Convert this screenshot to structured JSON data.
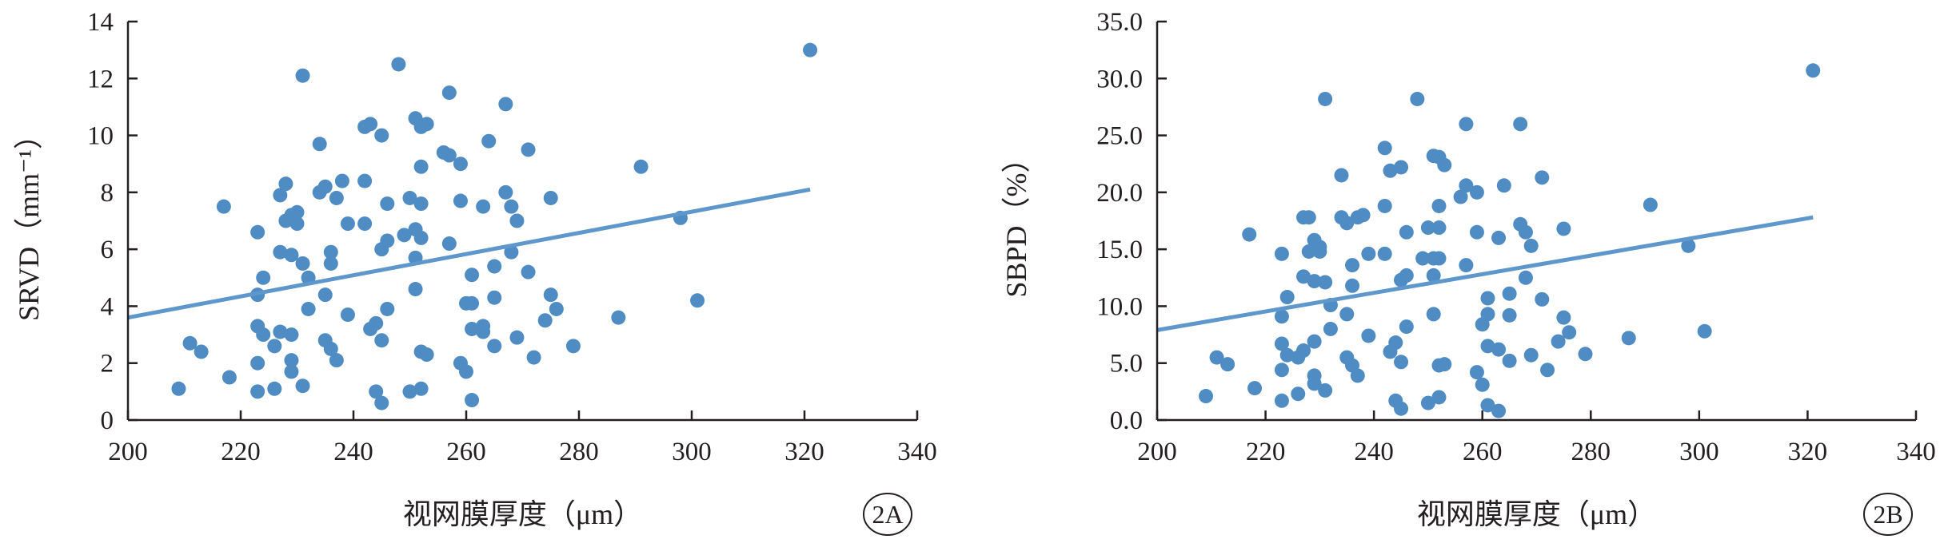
{
  "colors": {
    "marker": "#4f8cc4",
    "trendline": "#5d97cc",
    "axis": "#231f20"
  },
  "chart_data": [
    {
      "type": "scatter",
      "panel_label": "2A",
      "xlabel": "视网膜厚度（μm）",
      "ylabel": "SRVD（mm⁻¹）",
      "xlim": [
        200,
        340
      ],
      "ylim": [
        0,
        14
      ],
      "xticks": [
        "200",
        "220",
        "240",
        "260",
        "280",
        "300",
        "320",
        "340"
      ],
      "yticks": [
        "0",
        "2",
        "4",
        "6",
        "8",
        "10",
        "12",
        "14"
      ],
      "trendline": {
        "x": [
          200,
          321
        ],
        "y": [
          3.6,
          8.1
        ]
      },
      "grid": false,
      "points": [
        [
          209,
          1.1
        ],
        [
          211,
          2.7
        ],
        [
          213,
          2.4
        ],
        [
          217,
          7.5
        ],
        [
          218,
          1.5
        ],
        [
          223,
          6.6
        ],
        [
          223,
          4.4
        ],
        [
          223,
          3.3
        ],
        [
          223,
          2.0
        ],
        [
          223,
          1.0
        ],
        [
          224,
          5.0
        ],
        [
          224,
          3.0
        ],
        [
          226,
          2.6
        ],
        [
          226,
          1.1
        ],
        [
          227,
          7.9
        ],
        [
          227,
          5.9
        ],
        [
          227,
          3.1
        ],
        [
          228,
          8.3
        ],
        [
          228,
          7.0
        ],
        [
          229,
          7.2
        ],
        [
          229,
          5.8
        ],
        [
          229,
          3.0
        ],
        [
          229,
          2.1
        ],
        [
          229,
          1.7
        ],
        [
          230,
          6.9
        ],
        [
          230,
          7.3
        ],
        [
          231,
          12.1
        ],
        [
          231,
          5.5
        ],
        [
          231,
          1.2
        ],
        [
          232,
          5.0
        ],
        [
          232,
          3.9
        ],
        [
          234,
          9.7
        ],
        [
          234,
          8.0
        ],
        [
          235,
          8.2
        ],
        [
          235,
          4.4
        ],
        [
          235,
          2.8
        ],
        [
          236,
          5.9
        ],
        [
          236,
          5.5
        ],
        [
          236,
          2.5
        ],
        [
          237,
          7.8
        ],
        [
          237,
          2.1
        ],
        [
          238,
          8.4
        ],
        [
          239,
          6.9
        ],
        [
          239,
          3.7
        ],
        [
          242,
          10.3
        ],
        [
          242,
          8.4
        ],
        [
          242,
          6.9
        ],
        [
          243,
          10.4
        ],
        [
          243,
          3.2
        ],
        [
          244,
          3.4
        ],
        [
          244,
          1.0
        ],
        [
          245,
          10.0
        ],
        [
          245,
          6.0
        ],
        [
          245,
          2.8
        ],
        [
          245,
          0.6
        ],
        [
          246,
          7.6
        ],
        [
          246,
          6.3
        ],
        [
          246,
          3.9
        ],
        [
          248,
          12.5
        ],
        [
          249,
          6.5
        ],
        [
          250,
          7.8
        ],
        [
          250,
          1.0
        ],
        [
          251,
          10.6
        ],
        [
          251,
          6.7
        ],
        [
          251,
          5.7
        ],
        [
          251,
          4.6
        ],
        [
          252,
          10.3
        ],
        [
          252,
          8.9
        ],
        [
          252,
          7.6
        ],
        [
          252,
          6.4
        ],
        [
          252,
          2.4
        ],
        [
          252,
          1.1
        ],
        [
          253,
          10.4
        ],
        [
          253,
          2.3
        ],
        [
          256,
          9.4
        ],
        [
          257,
          11.5
        ],
        [
          257,
          9.3
        ],
        [
          257,
          6.2
        ],
        [
          259,
          9.0
        ],
        [
          259,
          7.7
        ],
        [
          259,
          2.0
        ],
        [
          260,
          4.1
        ],
        [
          260,
          1.7
        ],
        [
          261,
          5.1
        ],
        [
          261,
          4.1
        ],
        [
          261,
          3.2
        ],
        [
          261,
          0.7
        ],
        [
          263,
          7.5
        ],
        [
          263,
          3.3
        ],
        [
          263,
          3.1
        ],
        [
          264,
          9.8
        ],
        [
          265,
          5.4
        ],
        [
          265,
          4.3
        ],
        [
          265,
          2.6
        ],
        [
          267,
          11.1
        ],
        [
          267,
          8.0
        ],
        [
          268,
          7.5
        ],
        [
          268,
          5.9
        ],
        [
          269,
          7.0
        ],
        [
          269,
          2.9
        ],
        [
          271,
          9.5
        ],
        [
          271,
          5.2
        ],
        [
          272,
          2.2
        ],
        [
          274,
          3.5
        ],
        [
          275,
          7.8
        ],
        [
          275,
          4.4
        ],
        [
          276,
          3.9
        ],
        [
          279,
          2.6
        ],
        [
          287,
          3.6
        ],
        [
          291,
          8.9
        ],
        [
          298,
          7.1
        ],
        [
          301,
          4.2
        ],
        [
          321,
          13.0
        ]
      ]
    },
    {
      "type": "scatter",
      "panel_label": "2B",
      "xlabel": "视网膜厚度（μm）",
      "ylabel": "SBPD（%）",
      "xlim": [
        200,
        340
      ],
      "ylim": [
        0,
        35
      ],
      "xticks": [
        "200",
        "220",
        "240",
        "260",
        "280",
        "300",
        "320",
        "340"
      ],
      "yticks": [
        "0.0",
        "5.0",
        "10.0",
        "15.0",
        "20.0",
        "25.0",
        "30.0",
        "35.0"
      ],
      "trendline": {
        "x": [
          200,
          321
        ],
        "y": [
          7.9,
          17.8
        ]
      },
      "grid": false,
      "points": [
        [
          209,
          2.1
        ],
        [
          211,
          5.5
        ],
        [
          213,
          4.9
        ],
        [
          217,
          16.3
        ],
        [
          218,
          2.8
        ],
        [
          223,
          14.6
        ],
        [
          223,
          9.1
        ],
        [
          223,
          6.7
        ],
        [
          223,
          4.4
        ],
        [
          223,
          1.7
        ],
        [
          224,
          10.8
        ],
        [
          224,
          5.7
        ],
        [
          226,
          5.5
        ],
        [
          226,
          2.3
        ],
        [
          227,
          17.8
        ],
        [
          227,
          12.6
        ],
        [
          227,
          6.1
        ],
        [
          228,
          17.8
        ],
        [
          228,
          14.8
        ],
        [
          229,
          15.8
        ],
        [
          229,
          12.2
        ],
        [
          229,
          6.9
        ],
        [
          229,
          3.9
        ],
        [
          229,
          3.2
        ],
        [
          230,
          15.2
        ],
        [
          230,
          14.8
        ],
        [
          231,
          28.2
        ],
        [
          231,
          12.1
        ],
        [
          231,
          2.6
        ],
        [
          232,
          10.1
        ],
        [
          232,
          8.0
        ],
        [
          234,
          21.5
        ],
        [
          234,
          17.8
        ],
        [
          235,
          17.3
        ],
        [
          235,
          9.3
        ],
        [
          235,
          5.5
        ],
        [
          236,
          13.6
        ],
        [
          236,
          11.8
        ],
        [
          236,
          4.8
        ],
        [
          237,
          17.8
        ],
        [
          237,
          3.9
        ],
        [
          238,
          18.0
        ],
        [
          239,
          14.6
        ],
        [
          239,
          7.4
        ],
        [
          242,
          23.9
        ],
        [
          242,
          18.8
        ],
        [
          242,
          14.6
        ],
        [
          243,
          21.9
        ],
        [
          243,
          6.0
        ],
        [
          244,
          6.8
        ],
        [
          244,
          1.7
        ],
        [
          245,
          22.2
        ],
        [
          245,
          12.3
        ],
        [
          245,
          5.1
        ],
        [
          245,
          1.0
        ],
        [
          246,
          16.5
        ],
        [
          246,
          12.7
        ],
        [
          246,
          8.2
        ],
        [
          248,
          28.2
        ],
        [
          249,
          14.2
        ],
        [
          250,
          16.9
        ],
        [
          250,
          1.5
        ],
        [
          251,
          23.2
        ],
        [
          251,
          14.2
        ],
        [
          251,
          12.7
        ],
        [
          251,
          9.3
        ],
        [
          252,
          23.1
        ],
        [
          252,
          18.8
        ],
        [
          252,
          16.9
        ],
        [
          252,
          14.2
        ],
        [
          252,
          4.8
        ],
        [
          252,
          2.0
        ],
        [
          253,
          22.4
        ],
        [
          253,
          4.9
        ],
        [
          256,
          19.6
        ],
        [
          257,
          26.0
        ],
        [
          257,
          20.6
        ],
        [
          257,
          13.6
        ],
        [
          259,
          20.0
        ],
        [
          259,
          16.5
        ],
        [
          259,
          4.2
        ],
        [
          260,
          8.4
        ],
        [
          260,
          3.1
        ],
        [
          261,
          10.7
        ],
        [
          261,
          9.3
        ],
        [
          261,
          6.5
        ],
        [
          261,
          1.3
        ],
        [
          263,
          16.0
        ],
        [
          263,
          6.2
        ],
        [
          263,
          0.8
        ],
        [
          264,
          20.6
        ],
        [
          265,
          11.1
        ],
        [
          265,
          9.2
        ],
        [
          265,
          5.2
        ],
        [
          267,
          26.0
        ],
        [
          267,
          17.2
        ],
        [
          268,
          16.5
        ],
        [
          268,
          12.5
        ],
        [
          269,
          15.3
        ],
        [
          269,
          5.7
        ],
        [
          271,
          21.3
        ],
        [
          271,
          10.6
        ],
        [
          272,
          4.4
        ],
        [
          274,
          6.9
        ],
        [
          275,
          16.8
        ],
        [
          275,
          9.0
        ],
        [
          276,
          7.7
        ],
        [
          279,
          5.8
        ],
        [
          287,
          7.2
        ],
        [
          291,
          18.9
        ],
        [
          298,
          15.3
        ],
        [
          301,
          7.8
        ],
        [
          321,
          30.7
        ]
      ]
    }
  ]
}
